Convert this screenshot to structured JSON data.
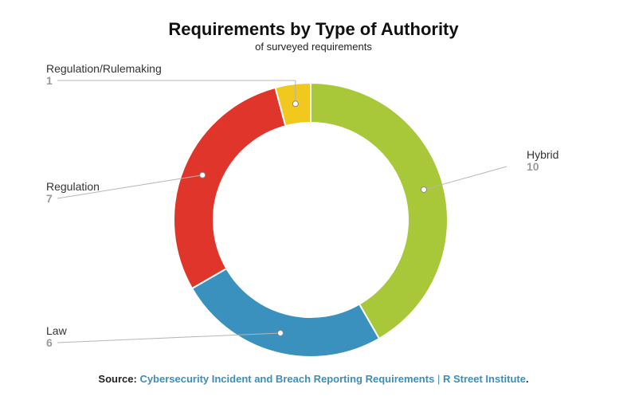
{
  "chart_data": {
    "type": "pie",
    "variant": "donut",
    "title": "Requirements by Type of Authority",
    "subtitle": "of surveyed requirements",
    "slices": [
      {
        "label": "Hybrid",
        "value": 10,
        "color": "#a8c83a"
      },
      {
        "label": "Law",
        "value": 6,
        "color": "#3a91bd"
      },
      {
        "label": "Regulation",
        "value": 7,
        "color": "#e0352b"
      },
      {
        "label": "Regulation/Rulemaking",
        "value": 1,
        "color": "#f0c81e"
      }
    ]
  },
  "source": {
    "prefix": "Source:",
    "title": "Cybersecurity Incident and Breach Reporting Requirements",
    "separator": "|",
    "publisher": "R Street Institute",
    "suffix": "."
  }
}
